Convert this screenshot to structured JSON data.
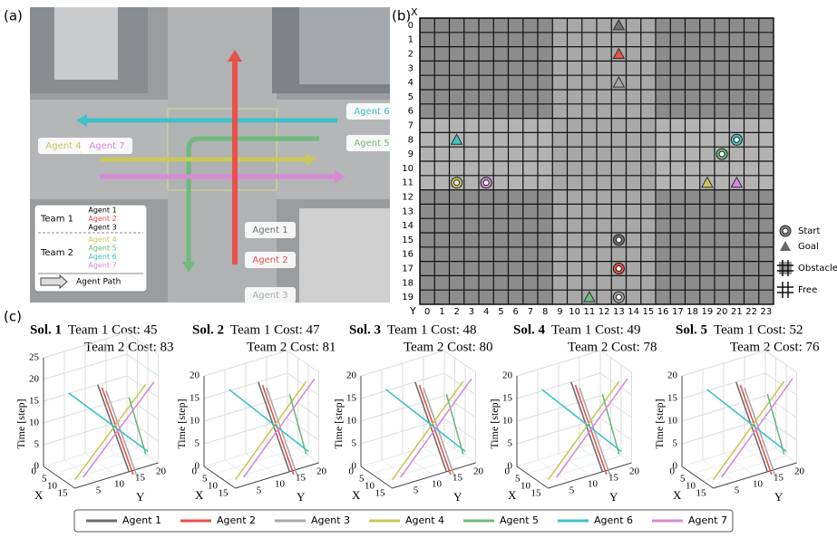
{
  "panel_labels": [
    "(a)",
    "(b)",
    "(c)"
  ],
  "agents": [
    {
      "name": "Agent 1",
      "color": "#6e6e6e"
    },
    {
      "name": "Agent 2",
      "color": "#e8504a"
    },
    {
      "name": "Agent 3",
      "color": "#a9a9a9"
    },
    {
      "name": "Agent 4",
      "color": "#c8c85a"
    },
    {
      "name": "Agent 5",
      "color": "#6fba7c"
    },
    {
      "name": "Agent 6",
      "color": "#3fc2c8"
    },
    {
      "name": "Agent 7",
      "color": "#d98ad6"
    }
  ],
  "scene": {
    "agent_labels": [
      "Agent 6",
      "Agent 5",
      "Agent 4",
      "Agent 7",
      "Agent 1",
      "Agent 2",
      "Agent 3"
    ],
    "legend": {
      "teams": [
        {
          "name": "Team 1",
          "agents": [
            "Agent 1",
            "Agent 2",
            "Agent 3"
          ]
        },
        {
          "name": "Team 2",
          "agents": [
            "Agent 4",
            "Agent 5",
            "Agent 6",
            "Agent 7"
          ]
        }
      ],
      "path": "Agent Path"
    }
  },
  "grid": {
    "x_label": "X",
    "y_label": "Y",
    "rows": [
      0,
      1,
      2,
      3,
      4,
      5,
      6,
      7,
      8,
      9,
      10,
      11,
      12,
      13,
      14,
      15,
      16,
      17,
      18,
      19
    ],
    "cols": [
      0,
      1,
      2,
      3,
      4,
      5,
      6,
      7,
      8,
      9,
      10,
      11,
      12,
      13,
      14,
      15,
      16,
      17,
      18,
      19,
      20,
      21,
      22,
      23
    ],
    "markers": [
      {
        "kind": "goal",
        "agent": 1,
        "row": 0,
        "col": 13
      },
      {
        "kind": "goal",
        "agent": 2,
        "row": 2,
        "col": 13
      },
      {
        "kind": "goal",
        "agent": 3,
        "row": 4,
        "col": 13
      },
      {
        "kind": "goal",
        "agent": 6,
        "row": 8,
        "col": 2
      },
      {
        "kind": "goal",
        "agent": 4,
        "row": 11,
        "col": 19
      },
      {
        "kind": "goal",
        "agent": 7,
        "row": 11,
        "col": 21
      },
      {
        "kind": "goal",
        "agent": 5,
        "row": 19,
        "col": 11
      },
      {
        "kind": "start",
        "agent": 6,
        "row": 8,
        "col": 21
      },
      {
        "kind": "start",
        "agent": 5,
        "row": 9,
        "col": 20
      },
      {
        "kind": "start",
        "agent": 4,
        "row": 11,
        "col": 2
      },
      {
        "kind": "start",
        "agent": 7,
        "row": 11,
        "col": 4
      },
      {
        "kind": "start",
        "agent": 1,
        "row": 15,
        "col": 13
      },
      {
        "kind": "start",
        "agent": 2,
        "row": 17,
        "col": 13
      },
      {
        "kind": "start",
        "agent": 3,
        "row": 19,
        "col": 13
      }
    ],
    "legend": [
      "Start",
      "Goal",
      "Obstacle",
      "Free"
    ]
  },
  "plots": {
    "time_label": "Time [step]",
    "x_label": "X",
    "y_label": "Y",
    "x_ticks": [
      0,
      5,
      10,
      15
    ],
    "y_ticks": [
      5,
      10,
      15,
      20
    ]
  },
  "solutions": [
    {
      "label": "Sol. 1",
      "team1": "Team 1 Cost: 45",
      "team2": "Team 2 Cost: 83",
      "t_ticks": [
        0,
        5,
        10,
        15,
        20,
        25
      ]
    },
    {
      "label": "Sol. 2",
      "team1": "Team 1 Cost: 47",
      "team2": "Team 2 Cost: 81",
      "t_ticks": [
        0,
        5,
        10,
        15,
        20
      ]
    },
    {
      "label": "Sol. 3",
      "team1": "Team 1 Cost: 48",
      "team2": "Team 2 Cost: 80",
      "t_ticks": [
        0,
        5,
        10,
        15,
        20
      ]
    },
    {
      "label": "Sol. 4",
      "team1": "Team 1 Cost: 49",
      "team2": "Team 2 Cost: 78",
      "t_ticks": [
        0,
        5,
        10,
        15,
        20
      ]
    },
    {
      "label": "Sol. 5",
      "team1": "Team 1 Cost: 52",
      "team2": "Team 2 Cost: 76",
      "t_ticks": [
        0,
        5,
        10,
        15,
        20
      ]
    }
  ]
}
